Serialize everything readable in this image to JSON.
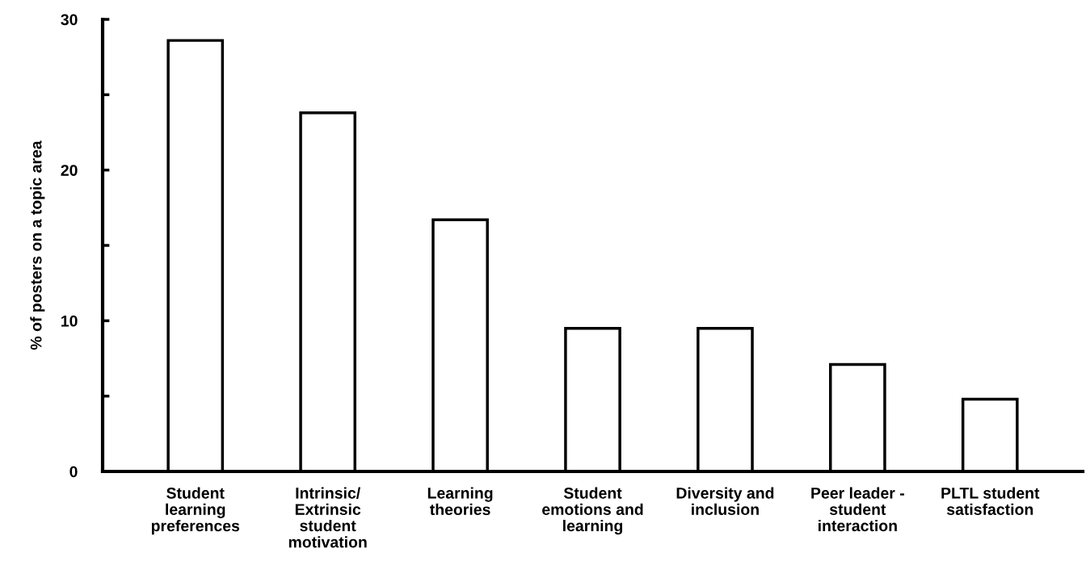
{
  "chart_data": {
    "type": "bar",
    "ylabel": "% of posters on a topic area",
    "categories": [
      "Student\nlearning\npreferences",
      "Intrinsic/\nExtrinsic\nstudent\nmotivation",
      "Learning\ntheories",
      "Student\nemotions and\nlearning",
      "Diversity and\ninclusion",
      "Peer leader -\nstudent\ninteraction",
      "PLTL student\nsatisfaction"
    ],
    "values": [
      28.6,
      23.8,
      16.7,
      9.5,
      9.5,
      7.1,
      4.8
    ],
    "color": "#ffffff",
    "ylim": [
      0,
      30
    ],
    "yticks": [
      0,
      {
        "value": 5,
        "label": null
      },
      10,
      {
        "value": 15,
        "label": null
      },
      20,
      {
        "value": 25,
        "label": null
      },
      30
    ],
    "grid": false
  }
}
